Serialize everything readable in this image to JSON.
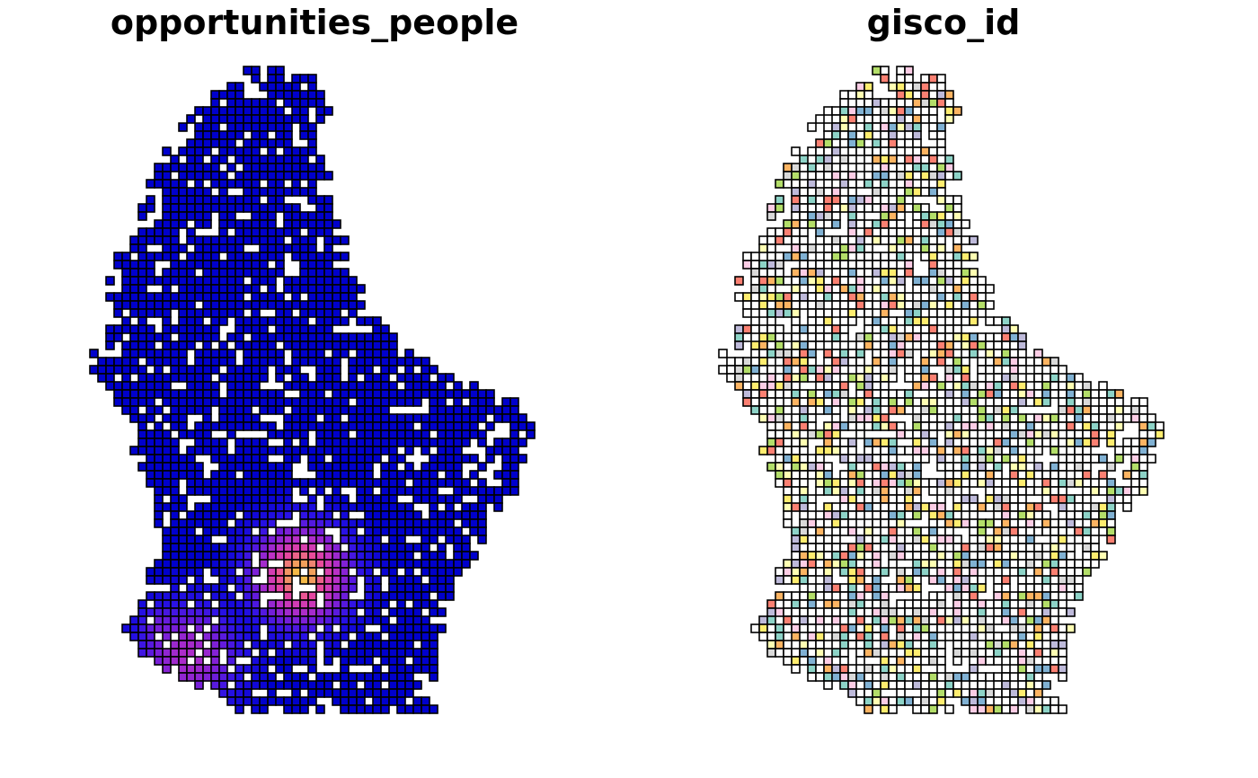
{
  "panels": [
    {
      "title": "opportunities_people",
      "fill": "continuous",
      "palette": [
        "#0000cc",
        "#2a12e6",
        "#7a1fd8",
        "#c032c4",
        "#e8489e",
        "#f6c341"
      ]
    },
    {
      "title": "gisco_id",
      "fill": "categorical",
      "palette": [
        "#8dd3c7",
        "#ffffb3",
        "#bebada",
        "#fb8072",
        "#80b1d3",
        "#fdb462",
        "#b3de69",
        "#fccde5",
        "#d9d9d9",
        "#ffed6f"
      ]
    }
  ]
}
